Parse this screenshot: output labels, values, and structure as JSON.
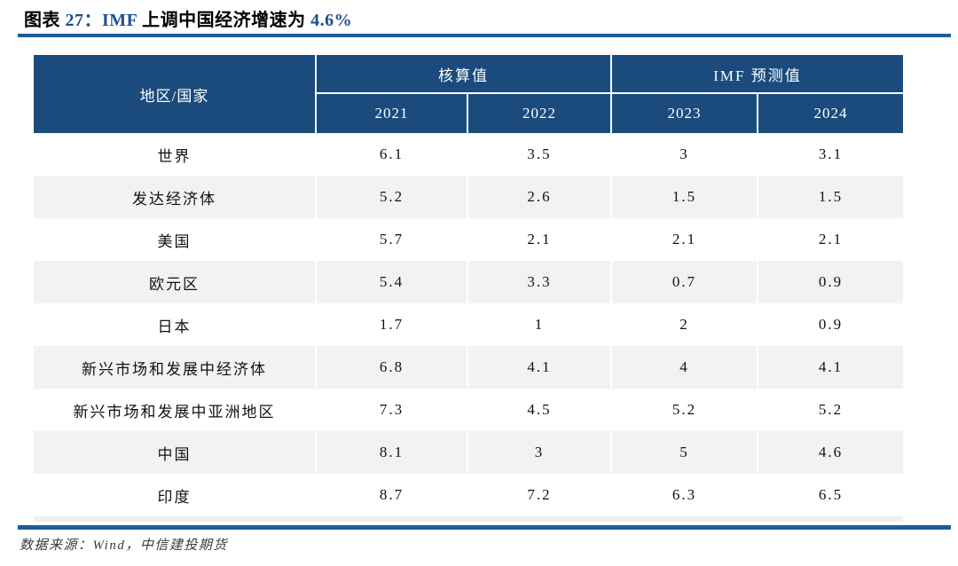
{
  "figure": {
    "title": {
      "part1": "图表 ",
      "part2": "27：",
      "part3": "IMF",
      "part4": " 上调中国经济增速为 ",
      "part5": "4.6%"
    }
  },
  "table": {
    "corner_header": "地区/国家",
    "groups": [
      {
        "label": "核算值",
        "years": [
          "2021",
          "2022"
        ]
      },
      {
        "label": "IMF 预测值",
        "years": [
          "2023",
          "2024"
        ]
      }
    ],
    "rows": [
      {
        "region": "世界",
        "values": [
          "6.1",
          "3.5",
          "3",
          "3.1"
        ]
      },
      {
        "region": "发达经济体",
        "values": [
          "5.2",
          "2.6",
          "1.5",
          "1.5"
        ]
      },
      {
        "region": "美国",
        "values": [
          "5.7",
          "2.1",
          "2.1",
          "2.1"
        ]
      },
      {
        "region": "欧元区",
        "values": [
          "5.4",
          "3.3",
          "0.7",
          "0.9"
        ]
      },
      {
        "region": "日本",
        "values": [
          "1.7",
          "1",
          "2",
          "0.9"
        ]
      },
      {
        "region": "新兴市场和发展中经济体",
        "values": [
          "6.8",
          "4.1",
          "4",
          "4.1"
        ]
      },
      {
        "region": "新兴市场和发展中亚洲地区",
        "values": [
          "7.3",
          "4.5",
          "5.2",
          "5.2"
        ]
      },
      {
        "region": "中国",
        "values": [
          "8.1",
          "3",
          "5",
          "4.6"
        ]
      },
      {
        "region": "印度",
        "values": [
          "8.7",
          "7.2",
          "6.3",
          "6.5"
        ]
      }
    ]
  },
  "footer": {
    "source": "数据来源：Wind，中信建投期货"
  },
  "colors": {
    "header_bg": "#1b4b7c",
    "row_alt": "#f2f2f2",
    "rule": "#1f5c99",
    "title_accent": "#1e4f8f"
  }
}
